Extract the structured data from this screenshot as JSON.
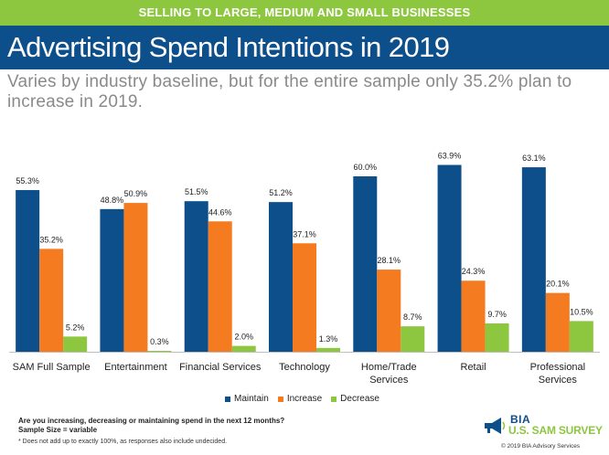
{
  "banner": "SELLING TO LARGE, MEDIUM AND SMALL BUSINESSES",
  "title": "Advertising Spend Intentions in 2019",
  "subtitle": "Varies by industry baseline, but for the entire sample only 35.2% plan to increase in 2019.",
  "colors": {
    "banner": "#8dc63f",
    "title_bar": "#0d4f8b",
    "maintain": "#0d4f8b",
    "increase": "#f47b20",
    "decrease": "#8dc63f"
  },
  "chart_data": {
    "type": "bar",
    "categories": [
      "SAM Full Sample",
      "Entertainment",
      "Financial Services",
      "Technology",
      "Home/Trade Services",
      "Retail",
      "Professional Services"
    ],
    "series": [
      {
        "name": "Maintain",
        "values": [
          55.3,
          48.8,
          51.5,
          51.2,
          60.0,
          63.9,
          63.1
        ],
        "labels": [
          "55.3%",
          "48.8%",
          "51.5%",
          "51.2%",
          "60.0%",
          "63.9%",
          "63.1%"
        ]
      },
      {
        "name": "Increase",
        "values": [
          35.2,
          50.9,
          44.6,
          37.1,
          28.1,
          24.3,
          20.1
        ],
        "labels": [
          "35.2%",
          "50.9%",
          "44.6%",
          "37.1%",
          "28.1%",
          "24.3%",
          "20.1%"
        ]
      },
      {
        "name": "Decrease",
        "values": [
          5.2,
          0.3,
          2.0,
          1.3,
          8.7,
          9.7,
          10.5
        ],
        "labels": [
          "5.2%",
          "0.3%",
          "2.0%",
          "1.3%",
          "8.7%",
          "9.7%",
          "10.5%"
        ]
      }
    ],
    "ylim": [
      0,
      70
    ],
    "grid": false,
    "legend_position": "bottom"
  },
  "footnote": {
    "question": "Are you increasing, decreasing or maintaining spend in the next 12 months?",
    "sample": "Sample Size = variable",
    "note": "* Does not add up to exactly 100%, as responses also include undecided."
  },
  "logo": {
    "brand": "BIA",
    "survey": "U.S. SAM SURVEY",
    "icon": "megaphone-icon"
  },
  "copyright": "© 2019 BIA Advisory Services"
}
